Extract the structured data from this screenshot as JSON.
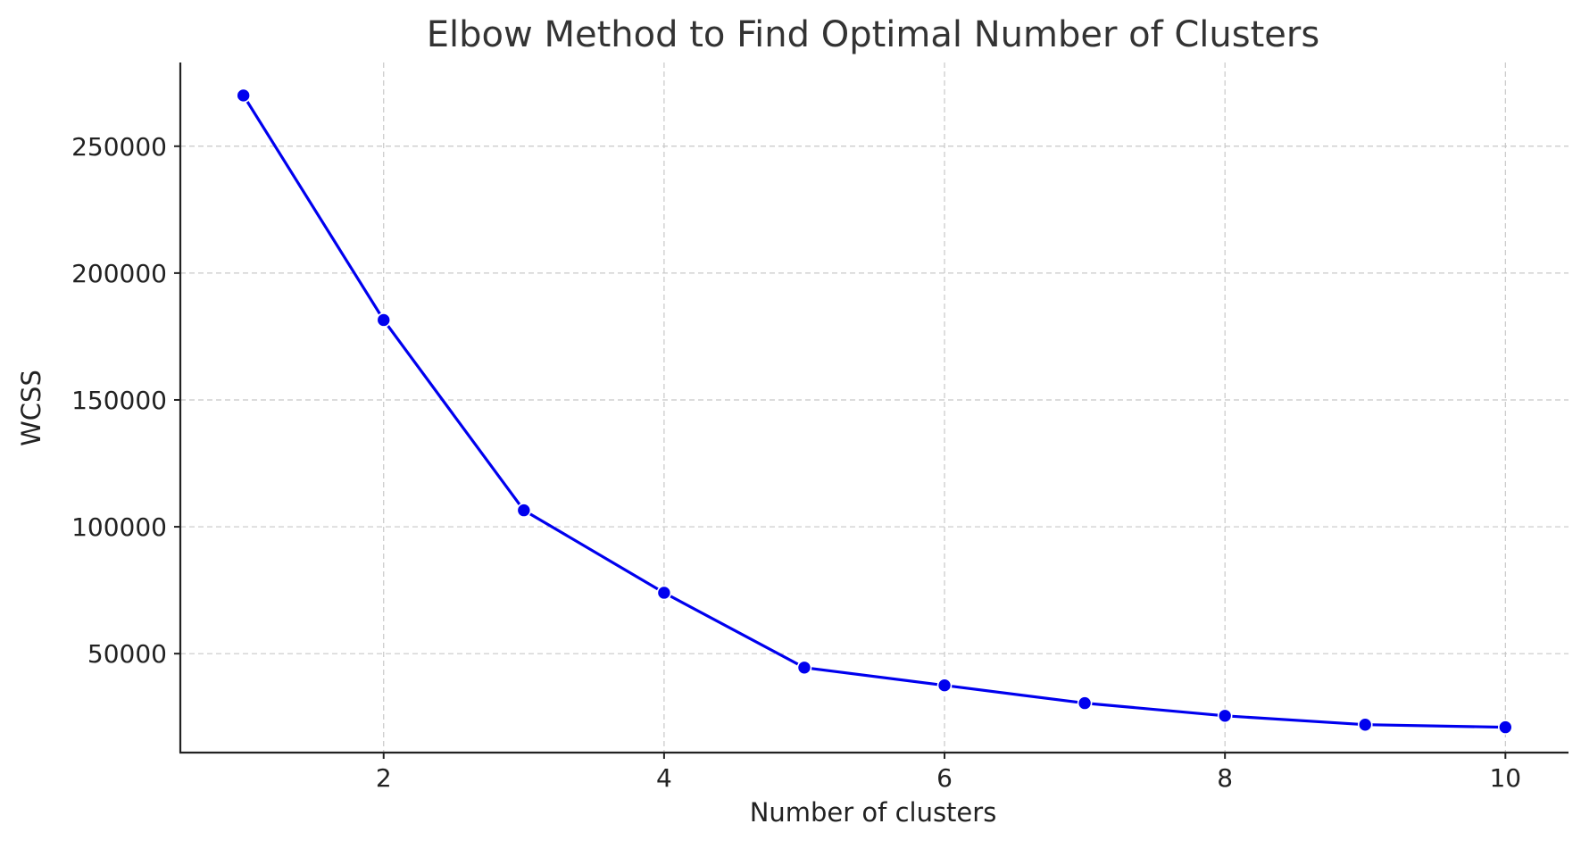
{
  "chart_data": {
    "type": "line",
    "title": "Elbow Method to Find Optimal Number of Clusters",
    "xlabel": "Number of clusters",
    "ylabel": "WCSS",
    "x": [
      1,
      2,
      3,
      4,
      5,
      6,
      7,
      8,
      9,
      10
    ],
    "series": [
      {
        "values": [
          270000,
          181500,
          106500,
          74000,
          44500,
          37500,
          30500,
          25500,
          22000,
          21000
        ],
        "color": "#0000ee",
        "marker": "circle"
      }
    ],
    "xticks": [
      2,
      4,
      6,
      8,
      10
    ],
    "yticks": [
      50000,
      100000,
      150000,
      200000,
      250000
    ],
    "xlim": [
      0.55,
      10.45
    ],
    "ylim": [
      11000,
      283000
    ],
    "grid": true,
    "spines": [
      "left",
      "bottom"
    ]
  }
}
